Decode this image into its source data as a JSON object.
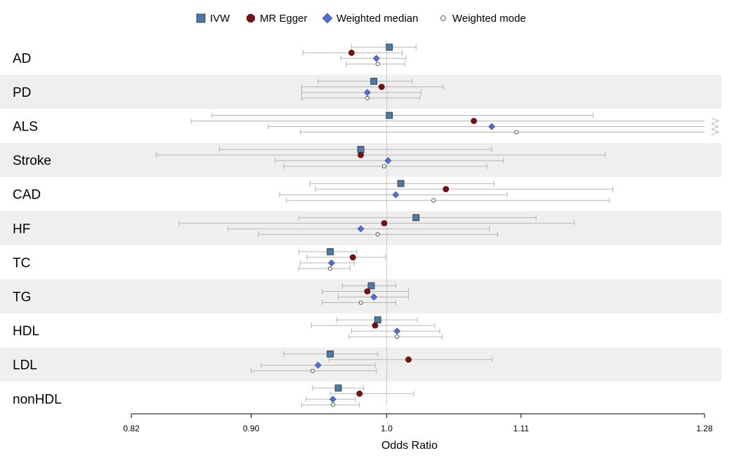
{
  "chart_data": {
    "type": "forest",
    "xlabel": "Odds Ratio",
    "x_scale": "log",
    "xlim": [
      0.82,
      1.28
    ],
    "x_ticks": [
      {
        "value": 0.82,
        "label": "0.82"
      },
      {
        "value": 0.9,
        "label": "0.90"
      },
      {
        "value": 1.0,
        "label": "1.0"
      },
      {
        "value": 1.11,
        "label": "1.11"
      },
      {
        "value": 1.28,
        "label": "1.28"
      }
    ],
    "reference_line": 1.0,
    "legend_position": "top",
    "methods": [
      {
        "key": "ivw",
        "name": "IVW",
        "shape": "square",
        "color": "#4a7ba6"
      },
      {
        "key": "egger",
        "name": "MR Egger",
        "shape": "hexagon",
        "color": "#7a1010"
      },
      {
        "key": "wmedian",
        "name": "Weighted median",
        "shape": "diamond",
        "color": "#4f6fd8"
      },
      {
        "key": "wmode",
        "name": "Weighted mode",
        "shape": "circle-open",
        "color": "#ffffff"
      }
    ],
    "outcomes": [
      {
        "label": "AD",
        "shaded": false,
        "estimates": [
          {
            "or": 1.002,
            "lo": 0.973,
            "hi": 1.023
          },
          {
            "or": 0.973,
            "lo": 0.937,
            "hi": 1.012
          },
          {
            "or": 0.992,
            "lo": 0.965,
            "hi": 1.015
          },
          {
            "or": 0.993,
            "lo": 0.969,
            "hi": 1.014
          }
        ]
      },
      {
        "label": "PD",
        "shaded": true,
        "estimates": [
          {
            "or": 0.99,
            "lo": 0.948,
            "hi": 1.02
          },
          {
            "or": 0.996,
            "lo": 0.936,
            "hi": 1.045
          },
          {
            "or": 0.985,
            "lo": 0.936,
            "hi": 1.027
          },
          {
            "or": 0.985,
            "lo": 0.936,
            "hi": 1.026
          }
        ]
      },
      {
        "label": "ALS",
        "shaded": false,
        "estimates": [
          {
            "or": 1.002,
            "lo": 0.873,
            "hi": 1.174
          },
          {
            "or": 1.07,
            "lo": 0.859,
            "hi": 1.28,
            "arrow_hi": true
          },
          {
            "or": 1.085,
            "lo": 0.912,
            "hi": 1.28,
            "arrow_hi": true
          },
          {
            "or": 1.106,
            "lo": 0.935,
            "hi": 1.28,
            "arrow_hi": true
          }
        ]
      },
      {
        "label": "Stroke",
        "shaded": true,
        "estimates": [
          {
            "or": 0.98,
            "lo": 0.878,
            "hi": 1.085
          },
          {
            "or": 0.98,
            "lo": 0.836,
            "hi": 1.185
          },
          {
            "or": 1.001,
            "lo": 0.917,
            "hi": 1.095
          },
          {
            "or": 0.998,
            "lo": 0.923,
            "hi": 1.081
          }
        ]
      },
      {
        "label": "CAD",
        "shaded": false,
        "estimates": [
          {
            "or": 1.011,
            "lo": 0.942,
            "hi": 1.087
          },
          {
            "or": 1.047,
            "lo": 0.946,
            "hi": 1.192
          },
          {
            "or": 1.007,
            "lo": 0.92,
            "hi": 1.098
          },
          {
            "or": 1.037,
            "lo": 0.925,
            "hi": 1.189
          }
        ]
      },
      {
        "label": "HF",
        "shaded": true,
        "estimates": [
          {
            "or": 1.023,
            "lo": 0.934,
            "hi": 1.123
          },
          {
            "or": 0.998,
            "lo": 0.851,
            "hi": 1.157
          },
          {
            "or": 0.98,
            "lo": 0.884,
            "hi": 1.083
          },
          {
            "or": 0.993,
            "lo": 0.905,
            "hi": 1.09
          }
        ]
      },
      {
        "label": "TC",
        "shaded": false,
        "estimates": [
          {
            "or": 0.957,
            "lo": 0.934,
            "hi": 0.977
          },
          {
            "or": 0.974,
            "lo": 0.94,
            "hi": 0.999
          },
          {
            "or": 0.958,
            "lo": 0.935,
            "hi": 0.975
          },
          {
            "or": 0.957,
            "lo": 0.934,
            "hi": 0.972
          }
        ]
      },
      {
        "label": "TG",
        "shaded": true,
        "estimates": [
          {
            "or": 0.988,
            "lo": 0.966,
            "hi": 1.007
          },
          {
            "or": 0.985,
            "lo": 0.951,
            "hi": 1.017
          },
          {
            "or": 0.99,
            "lo": 0.963,
            "hi": 1.017
          },
          {
            "or": 0.98,
            "lo": 0.951,
            "hi": 1.007
          }
        ]
      },
      {
        "label": "HDL",
        "shaded": false,
        "estimates": [
          {
            "or": 0.993,
            "lo": 0.962,
            "hi": 1.024
          },
          {
            "or": 0.991,
            "lo": 0.943,
            "hi": 1.038
          },
          {
            "or": 1.008,
            "lo": 0.973,
            "hi": 1.042
          },
          {
            "or": 1.008,
            "lo": 0.971,
            "hi": 1.044
          }
        ]
      },
      {
        "label": "LDL",
        "shaded": true,
        "estimates": [
          {
            "or": 0.957,
            "lo": 0.923,
            "hi": 0.993
          },
          {
            "or": 1.017,
            "lo": 0.956,
            "hi": 1.085
          },
          {
            "or": 0.948,
            "lo": 0.907,
            "hi": 0.991
          },
          {
            "or": 0.944,
            "lo": 0.9,
            "hi": 0.992
          }
        ]
      },
      {
        "label": "nonHDL",
        "shaded": false,
        "estimates": [
          {
            "or": 0.963,
            "lo": 0.944,
            "hi": 0.982
          },
          {
            "or": 0.979,
            "lo": 0.957,
            "hi": 1.021
          },
          {
            "or": 0.959,
            "lo": 0.939,
            "hi": 0.976
          },
          {
            "or": 0.959,
            "lo": 0.936,
            "hi": 0.979
          }
        ]
      }
    ]
  }
}
